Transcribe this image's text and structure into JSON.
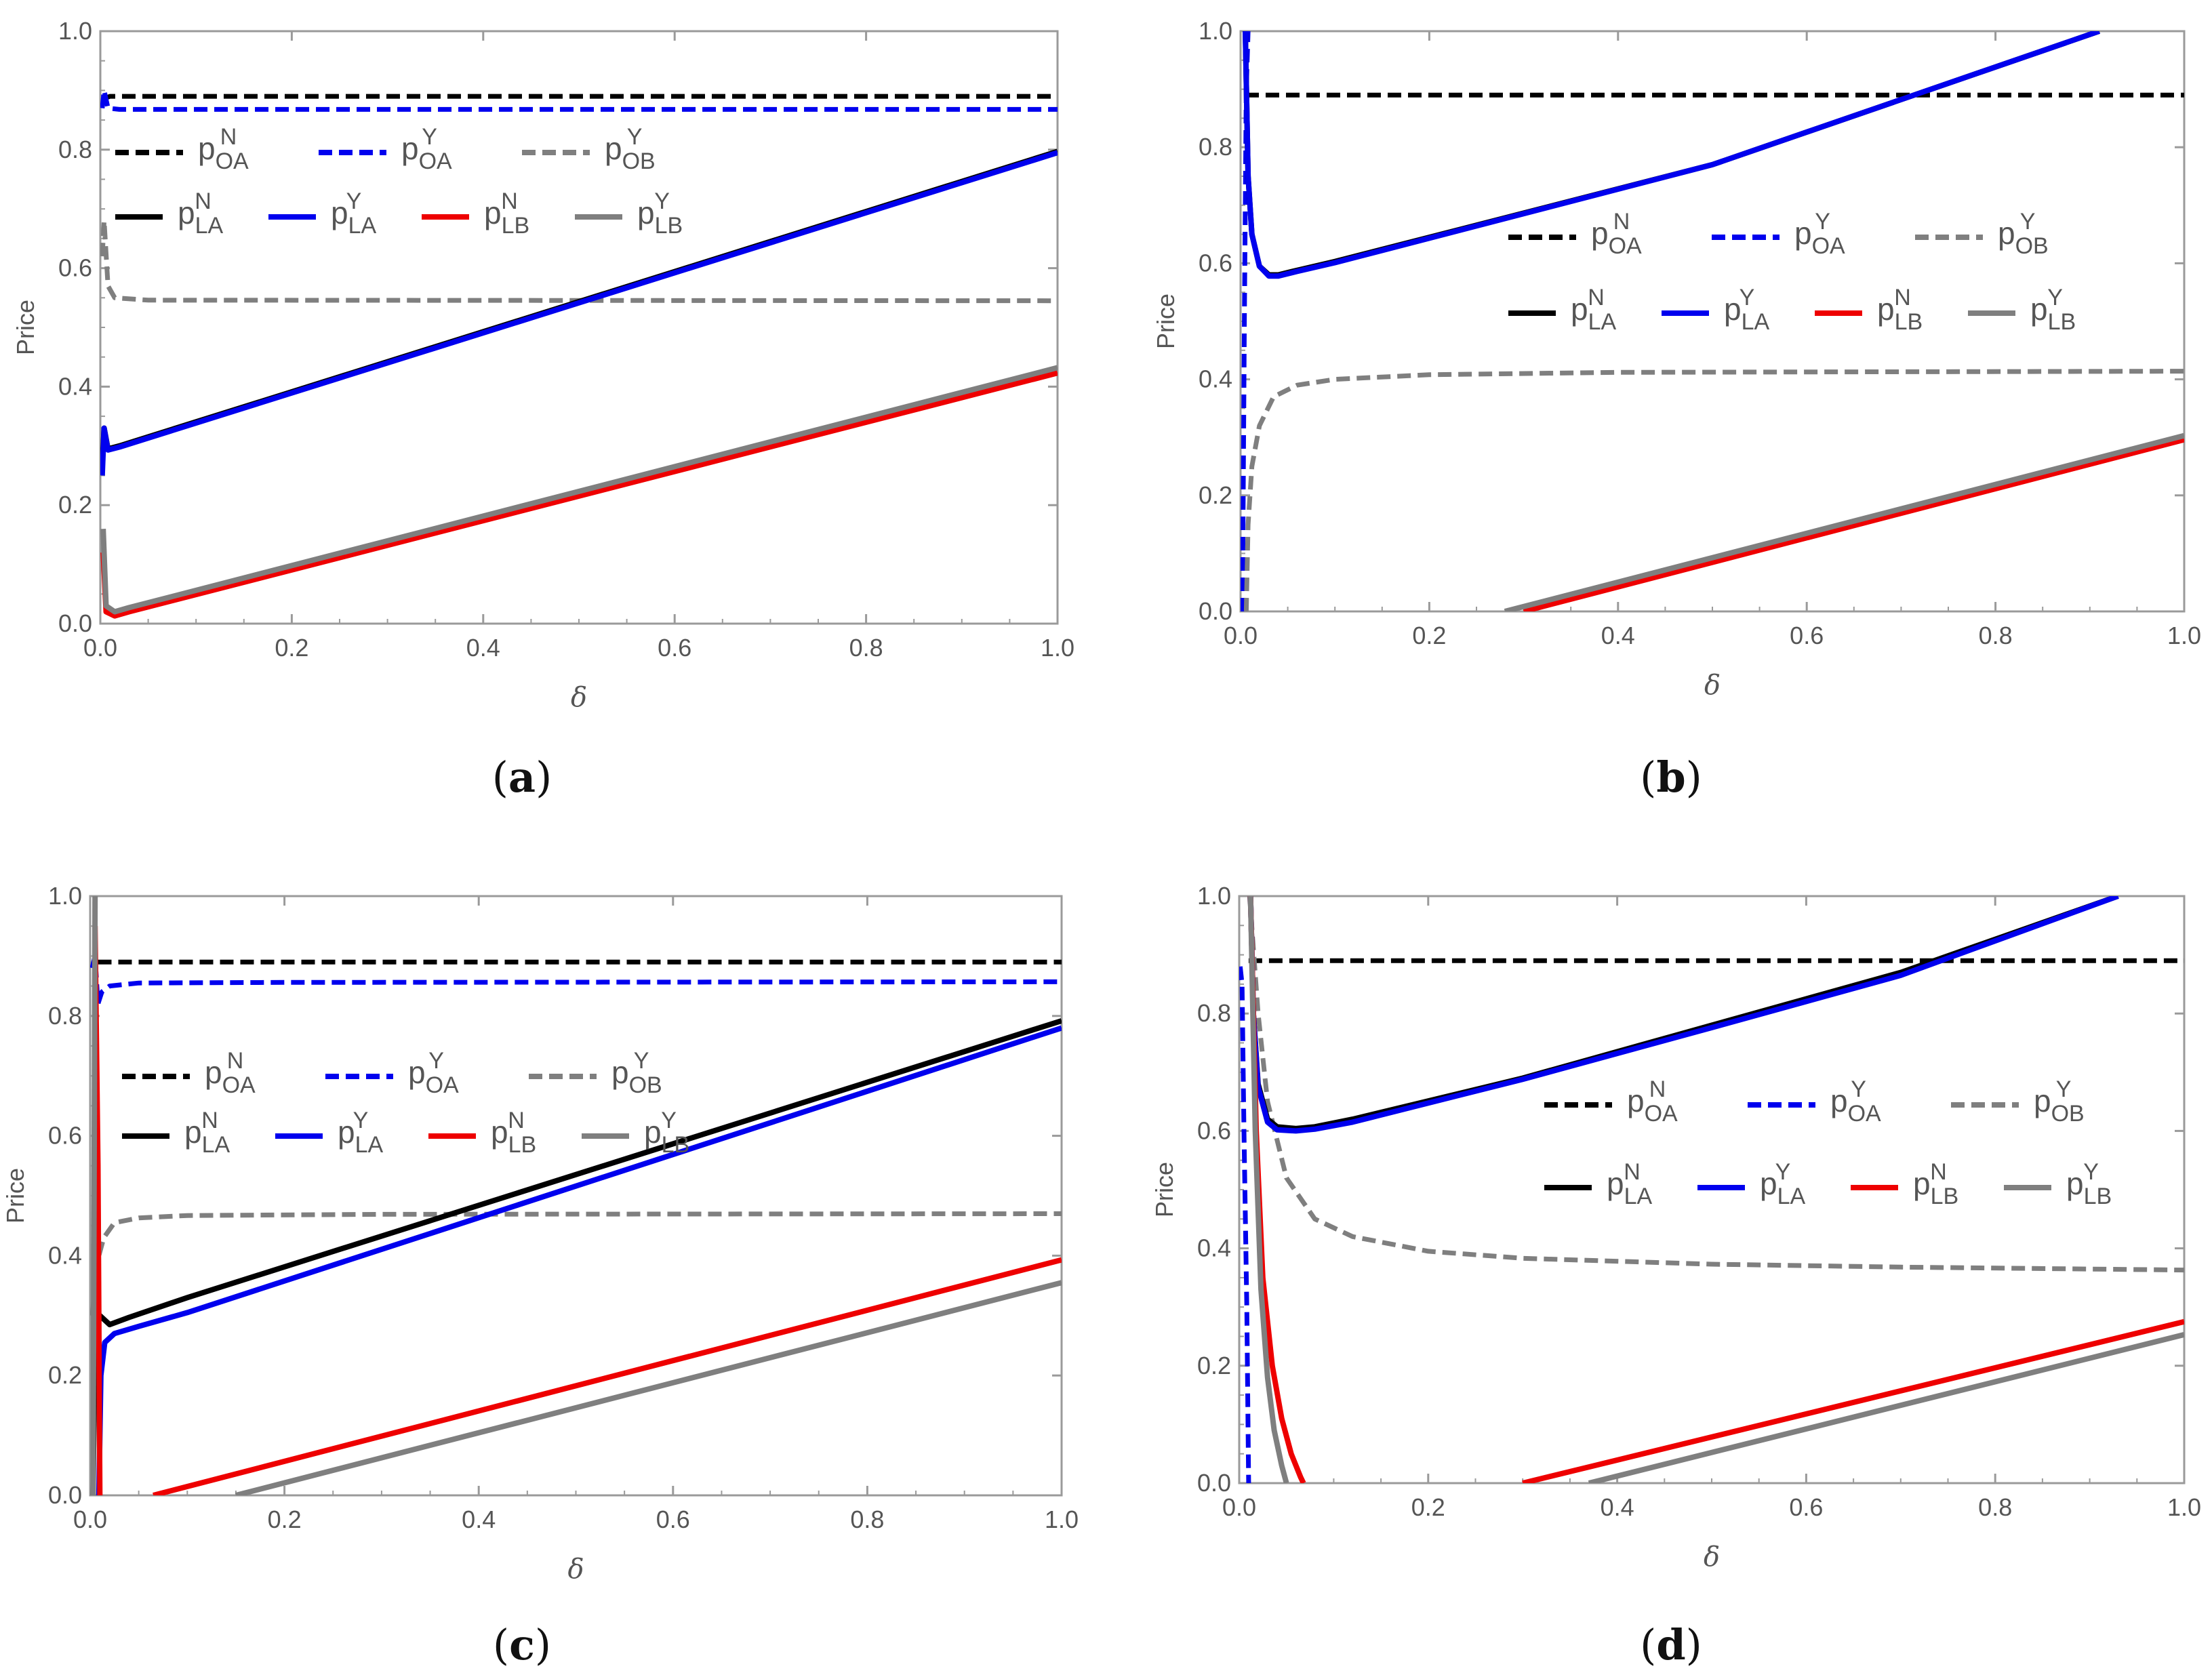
{
  "chart_data": [
    {
      "panel": "(a)",
      "type": "line",
      "xlabel": "δ",
      "ylabel": "Price",
      "xlim": [
        0,
        1
      ],
      "ylim": [
        0,
        1
      ],
      "xticks": [
        "0.0",
        "0.2",
        "0.4",
        "0.6",
        "0.8",
        "1.0"
      ],
      "yticks": [
        "0.0",
        "0.2",
        "0.4",
        "0.6",
        "0.8",
        "1.0"
      ],
      "series": [
        {
          "name": "p_OA^N",
          "color": "#000000",
          "dashed": true,
          "points": [
            [
              0.002,
              0.885
            ],
            [
              0.01,
              0.89
            ],
            [
              1.0,
              0.89
            ]
          ]
        },
        {
          "name": "p_OA^Y",
          "color": "#0000ee",
          "dashed": true,
          "points": [
            [
              0.002,
              0.87
            ],
            [
              0.004,
              0.9
            ],
            [
              0.008,
              0.87
            ],
            [
              0.02,
              0.868
            ],
            [
              1.0,
              0.868
            ]
          ]
        },
        {
          "name": "p_OB^Y",
          "color": "#7f7f7f",
          "dashed": true,
          "points": [
            [
              0.002,
              0.62
            ],
            [
              0.004,
              0.68
            ],
            [
              0.008,
              0.57
            ],
            [
              0.015,
              0.55
            ],
            [
              0.05,
              0.546
            ],
            [
              1.0,
              0.545
            ]
          ]
        },
        {
          "name": "p_LA^N",
          "color": "#000000",
          "dashed": false,
          "points": [
            [
              0.002,
              0.27
            ],
            [
              0.004,
              0.33
            ],
            [
              0.008,
              0.295
            ],
            [
              0.02,
              0.3
            ],
            [
              1.0,
              0.797
            ]
          ]
        },
        {
          "name": "p_LA^Y",
          "color": "#0000ee",
          "dashed": false,
          "points": [
            [
              0.002,
              0.25
            ],
            [
              0.004,
              0.33
            ],
            [
              0.008,
              0.293
            ],
            [
              0.02,
              0.298
            ],
            [
              1.0,
              0.795
            ]
          ]
        },
        {
          "name": "p_LB^N",
          "color": "#ee0000",
          "dashed": false,
          "points": [
            [
              0.003,
              0.12
            ],
            [
              0.006,
              0.02
            ],
            [
              0.015,
              0.013
            ],
            [
              0.03,
              0.02
            ],
            [
              1.0,
              0.423
            ]
          ]
        },
        {
          "name": "p_LB^Y",
          "color": "#7f7f7f",
          "dashed": false,
          "points": [
            [
              0.003,
              0.16
            ],
            [
              0.006,
              0.03
            ],
            [
              0.015,
              0.02
            ],
            [
              0.03,
              0.027
            ],
            [
              1.0,
              0.432
            ]
          ]
        }
      ],
      "legend": {
        "row1": [
          "p_OA^N",
          "p_OA^Y",
          "p_OB^Y"
        ],
        "row2": [
          "p_LA^N",
          "p_LA^Y",
          "p_LB^N",
          "p_LB^Y"
        ],
        "position": "upper-left"
      }
    },
    {
      "panel": "(b)",
      "type": "line",
      "xlabel": "δ",
      "ylabel": "Price",
      "xlim": [
        0,
        1
      ],
      "ylim": [
        0,
        1
      ],
      "xticks": [
        "0.0",
        "0.2",
        "0.4",
        "0.6",
        "0.8",
        "1.0"
      ],
      "yticks": [
        "0.0",
        "0.2",
        "0.4",
        "0.6",
        "0.8",
        "1.0"
      ],
      "series": [
        {
          "name": "p_OA^N",
          "color": "#000000",
          "dashed": true,
          "points": [
            [
              0.005,
              0.89
            ],
            [
              1.0,
              0.89
            ]
          ]
        },
        {
          "name": "p_OA^Y",
          "color": "#0000ee",
          "dashed": true,
          "points": [
            [
              0.002,
              0.0
            ],
            [
              0.004,
              0.5
            ],
            [
              0.006,
              0.9
            ],
            [
              0.008,
              1.0
            ]
          ]
        },
        {
          "name": "p_OB^Y",
          "color": "#7f7f7f",
          "dashed": true,
          "points": [
            [
              0.006,
              0.0
            ],
            [
              0.008,
              0.15
            ],
            [
              0.012,
              0.25
            ],
            [
              0.02,
              0.32
            ],
            [
              0.035,
              0.37
            ],
            [
              0.06,
              0.39
            ],
            [
              0.1,
              0.4
            ],
            [
              0.2,
              0.408
            ],
            [
              0.4,
              0.412
            ],
            [
              1.0,
              0.414
            ]
          ]
        },
        {
          "name": "p_LA^N",
          "color": "#000000",
          "dashed": false,
          "points": [
            [
              0.005,
              1.0
            ],
            [
              0.008,
              0.75
            ],
            [
              0.012,
              0.65
            ],
            [
              0.02,
              0.595
            ],
            [
              0.03,
              0.58
            ],
            [
              0.04,
              0.58
            ],
            [
              0.06,
              0.588
            ],
            [
              0.1,
              0.603
            ],
            [
              0.5,
              0.77
            ],
            [
              0.91,
              1.0
            ]
          ]
        },
        {
          "name": "p_LA^Y",
          "color": "#0000ee",
          "dashed": false,
          "points": [
            [
              0.005,
              1.0
            ],
            [
              0.008,
              0.75
            ],
            [
              0.012,
              0.65
            ],
            [
              0.02,
              0.595
            ],
            [
              0.03,
              0.578
            ],
            [
              0.04,
              0.578
            ],
            [
              0.06,
              0.586
            ],
            [
              0.1,
              0.601
            ],
            [
              0.5,
              0.77
            ],
            [
              0.91,
              1.0
            ]
          ]
        },
        {
          "name": "p_LB^N",
          "color": "#ee0000",
          "dashed": false,
          "points": [
            [
              0.3,
              0.0
            ],
            [
              1.0,
              0.296
            ]
          ]
        },
        {
          "name": "p_LB^Y",
          "color": "#7f7f7f",
          "dashed": false,
          "points": [
            [
              0.28,
              0.0
            ],
            [
              1.0,
              0.303
            ]
          ]
        }
      ],
      "legend": {
        "row1": [
          "p_OA^N",
          "p_OA^Y",
          "p_OB^Y"
        ],
        "row2": [
          "p_LA^N",
          "p_LA^Y",
          "p_LB^N",
          "p_LB^Y"
        ],
        "position": "upper-right"
      }
    },
    {
      "panel": "(c)",
      "type": "line",
      "xlabel": "δ",
      "ylabel": "Price",
      "xlim": [
        0,
        1
      ],
      "ylim": [
        0,
        1
      ],
      "xticks": [
        "0.0",
        "0.2",
        "0.4",
        "0.6",
        "0.8",
        "1.0"
      ],
      "yticks": [
        "0.0",
        "0.2",
        "0.4",
        "0.6",
        "0.8",
        "1.0"
      ],
      "series": [
        {
          "name": "p_OA^N",
          "color": "#000000",
          "dashed": true,
          "points": [
            [
              0.008,
              0.89
            ],
            [
              1.0,
              0.89
            ]
          ]
        },
        {
          "name": "p_OA^Y",
          "color": "#0000ee",
          "dashed": true,
          "points": [
            [
              0.002,
              0.88
            ],
            [
              0.005,
              0.9
            ],
            [
              0.008,
              0.82
            ],
            [
              0.012,
              0.84
            ],
            [
              0.02,
              0.85
            ],
            [
              0.05,
              0.855
            ],
            [
              0.2,
              0.856
            ],
            [
              1.0,
              0.857
            ]
          ]
        },
        {
          "name": "p_OB^Y",
          "color": "#7f7f7f",
          "dashed": true,
          "points": [
            [
              0.002,
              0.3
            ],
            [
              0.006,
              0.36
            ],
            [
              0.009,
              0.4
            ],
            [
              0.014,
              0.43
            ],
            [
              0.025,
              0.455
            ],
            [
              0.05,
              0.463
            ],
            [
              0.1,
              0.467
            ],
            [
              0.3,
              0.469
            ],
            [
              1.0,
              0.47
            ]
          ]
        },
        {
          "name": "p_LA^N",
          "color": "#000000",
          "dashed": false,
          "points": [
            [
              0.003,
              0.0
            ],
            [
              0.005,
              0.3
            ],
            [
              0.01,
              0.3
            ],
            [
              0.02,
              0.285
            ],
            [
              0.04,
              0.297
            ],
            [
              0.1,
              0.33
            ],
            [
              1.0,
              0.792
            ]
          ]
        },
        {
          "name": "p_LA^Y",
          "color": "#0000ee",
          "dashed": false,
          "points": [
            [
              0.009,
              0.0
            ],
            [
              0.011,
              0.2
            ],
            [
              0.015,
              0.255
            ],
            [
              0.025,
              0.27
            ],
            [
              0.05,
              0.282
            ],
            [
              0.1,
              0.305
            ],
            [
              1.0,
              0.78
            ]
          ]
        },
        {
          "name": "p_LB^N",
          "color": "#ee0000",
          "dashed": false,
          "points": [
            [
              0.005,
              0.95
            ],
            [
              0.008,
              0.55
            ],
            [
              0.01,
              0.0
            ]
          ]
        },
        {
          "name": "p_LB^N",
          "color": "#ee0000",
          "dashed": false,
          "points": [
            [
              0.065,
              0.0
            ],
            [
              1.0,
              0.393
            ]
          ]
        },
        {
          "name": "p_LB^Y",
          "color": "#7f7f7f",
          "dashed": false,
          "points": [
            [
              0.003,
              0.0
            ],
            [
              0.005,
              1.0
            ]
          ]
        },
        {
          "name": "p_LB^Y",
          "color": "#7f7f7f",
          "dashed": false,
          "points": [
            [
              0.15,
              0.0
            ],
            [
              1.0,
              0.355
            ]
          ]
        }
      ],
      "legend": {
        "row1": [
          "p_OA^N",
          "p_OA^Y",
          "p_OB^Y"
        ],
        "row2": [
          "p_LA^N",
          "p_LA^Y",
          "p_LB^N",
          "p_LB^Y"
        ],
        "position": "upper-left"
      }
    },
    {
      "panel": "(d)",
      "type": "line",
      "xlabel": "δ",
      "ylabel": "Price",
      "xlim": [
        0,
        1
      ],
      "ylim": [
        0,
        1
      ],
      "xticks": [
        "0.0",
        "0.2",
        "0.4",
        "0.6",
        "0.8",
        "1.0"
      ],
      "yticks": [
        "0.0",
        "0.2",
        "0.4",
        "0.6",
        "0.8",
        "1.0"
      ],
      "series": [
        {
          "name": "p_OA^N",
          "color": "#000000",
          "dashed": true,
          "points": [
            [
              0.01,
              0.89
            ],
            [
              1.0,
              0.89
            ]
          ]
        },
        {
          "name": "p_OA^Y",
          "color": "#0000ee",
          "dashed": true,
          "points": [
            [
              0.001,
              0.88
            ],
            [
              0.003,
              0.85
            ],
            [
              0.005,
              0.6
            ],
            [
              0.008,
              0.3
            ],
            [
              0.01,
              0.0
            ]
          ]
        },
        {
          "name": "p_OB^Y",
          "color": "#7f7f7f",
          "dashed": true,
          "points": [
            [
              0.011,
              1.0
            ],
            [
              0.02,
              0.8
            ],
            [
              0.03,
              0.65
            ],
            [
              0.05,
              0.52
            ],
            [
              0.08,
              0.45
            ],
            [
              0.12,
              0.42
            ],
            [
              0.2,
              0.395
            ],
            [
              0.3,
              0.383
            ],
            [
              0.5,
              0.373
            ],
            [
              0.7,
              0.368
            ],
            [
              1.0,
              0.363
            ]
          ]
        },
        {
          "name": "p_LA^N",
          "color": "#000000",
          "dashed": false,
          "points": [
            [
              0.012,
              1.0
            ],
            [
              0.015,
              0.8
            ],
            [
              0.02,
              0.68
            ],
            [
              0.03,
              0.62
            ],
            [
              0.04,
              0.607
            ],
            [
              0.06,
              0.604
            ],
            [
              0.08,
              0.607
            ],
            [
              0.12,
              0.62
            ],
            [
              0.3,
              0.69
            ],
            [
              0.5,
              0.78
            ],
            [
              0.7,
              0.87
            ],
            [
              0.93,
              1.0
            ]
          ]
        },
        {
          "name": "p_LA^Y",
          "color": "#0000ee",
          "dashed": false,
          "points": [
            [
              0.012,
              1.0
            ],
            [
              0.015,
              0.8
            ],
            [
              0.02,
              0.675
            ],
            [
              0.03,
              0.615
            ],
            [
              0.04,
              0.602
            ],
            [
              0.06,
              0.6
            ],
            [
              0.08,
              0.603
            ],
            [
              0.12,
              0.615
            ],
            [
              0.3,
              0.688
            ],
            [
              0.5,
              0.776
            ],
            [
              0.7,
              0.865
            ],
            [
              0.93,
              1.0
            ]
          ]
        },
        {
          "name": "p_LB^N",
          "color": "#ee0000",
          "dashed": false,
          "points": [
            [
              0.012,
              1.0
            ],
            [
              0.018,
              0.6
            ],
            [
              0.025,
              0.35
            ],
            [
              0.035,
              0.2
            ],
            [
              0.045,
              0.11
            ],
            [
              0.055,
              0.05
            ],
            [
              0.065,
              0.01
            ],
            [
              0.068,
              0.0
            ]
          ]
        },
        {
          "name": "p_LB^N",
          "color": "#ee0000",
          "dashed": false,
          "points": [
            [
              0.3,
              0.0
            ],
            [
              1.0,
              0.275
            ]
          ]
        },
        {
          "name": "p_LB^Y",
          "color": "#7f7f7f",
          "dashed": false,
          "points": [
            [
              0.012,
              1.0
            ],
            [
              0.017,
              0.6
            ],
            [
              0.023,
              0.33
            ],
            [
              0.03,
              0.18
            ],
            [
              0.037,
              0.09
            ],
            [
              0.045,
              0.03
            ],
            [
              0.05,
              0.0
            ]
          ]
        },
        {
          "name": "p_LB^Y",
          "color": "#7f7f7f",
          "dashed": false,
          "points": [
            [
              0.37,
              0.0
            ],
            [
              1.0,
              0.253
            ]
          ]
        }
      ],
      "legend": {
        "row1": [
          "p_OA^N",
          "p_OA^Y",
          "p_OB^Y"
        ],
        "row2": [
          "p_LA^N",
          "p_LA^Y",
          "p_LB^N",
          "p_LB^Y"
        ],
        "position": "right"
      }
    }
  ]
}
